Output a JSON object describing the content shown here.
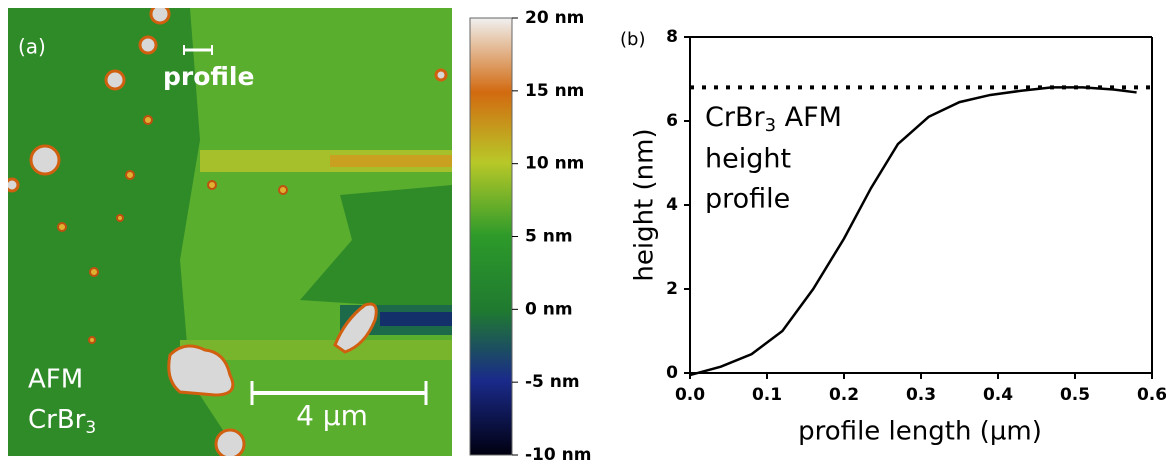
{
  "afm_image": {
    "panel_label": "(a)",
    "profile_label": "profile",
    "sample_label": {
      "line1": "AFM",
      "formula": "CrBr",
      "subscript": "3"
    },
    "scale_bar": "4 µm",
    "colorbar": {
      "lim": [
        -10,
        20
      ],
      "ticks": [
        {
          "value": 20,
          "label": "20 nm"
        },
        {
          "value": 15,
          "label": "15 nm"
        },
        {
          "value": 10,
          "label": "10 nm"
        },
        {
          "value": 5,
          "label": "5 nm"
        },
        {
          "value": 0,
          "label": "0 nm"
        },
        {
          "value": -5,
          "label": "-5 nm"
        },
        {
          "value": -10,
          "label": "-10 nm"
        }
      ]
    }
  },
  "chart_data": {
    "type": "line",
    "panel_label": "(b)",
    "x_label": "profile length (µm)",
    "y_label": "height (nm)",
    "annotation": {
      "formula": "CrBr",
      "subscript": "3",
      "rest": " AFM",
      "line2": "height",
      "line3": "profile"
    },
    "xlim": [
      0,
      0.6
    ],
    "ylim": [
      0,
      8
    ],
    "xticks": [
      {
        "value": 0,
        "label": "0.0"
      },
      0.1,
      0.2,
      0.3,
      0.4,
      0.5,
      0.6
    ],
    "yticks": [
      0,
      2,
      4,
      6,
      8
    ],
    "series": [
      {
        "color": "#000000",
        "style": "solid",
        "x": [
          0,
          0.04,
          0.08,
          0.12,
          0.16,
          0.2,
          0.235,
          0.27,
          0.31,
          0.35,
          0.39,
          0.43,
          0.47,
          0.51,
          0.55,
          0.58
        ],
        "values": [
          -0.05,
          0.15,
          0.45,
          1.0,
          2.0,
          3.2,
          4.4,
          5.45,
          6.1,
          6.45,
          6.62,
          6.72,
          6.8,
          6.8,
          6.75,
          6.68
        ]
      },
      {
        "color": "#000000",
        "style": "dotted",
        "x": [
          0,
          0.6
        ],
        "values": [
          6.8,
          6.8
        ]
      }
    ]
  }
}
